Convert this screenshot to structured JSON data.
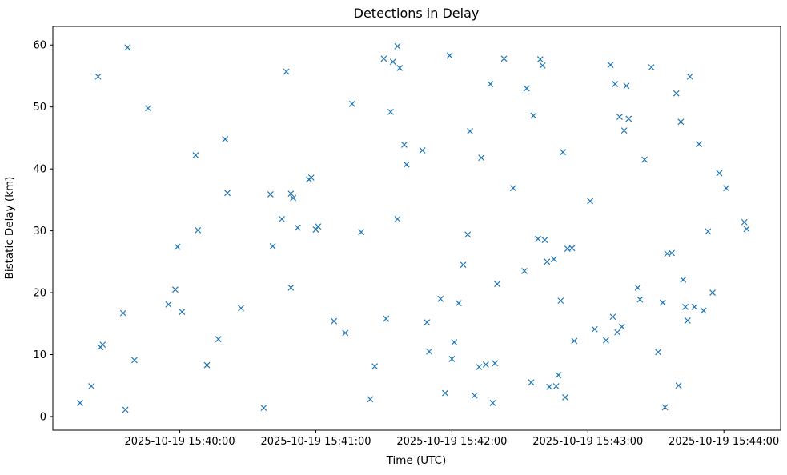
{
  "figure": {
    "title": "Detections in Delay",
    "xlabel": "Time (UTC)",
    "ylabel": "Bistatic Delay (km)"
  },
  "chart_data": {
    "type": "scatter",
    "title": "Detections in Delay",
    "xlabel": "Time (UTC)",
    "ylabel": "Bistatic Delay (km)",
    "marker": "x",
    "marker_color": "#1f77b4",
    "grid": false,
    "legend": "none",
    "x_unit": "seconds relative to 2025-10-19 15:40:00 UTC",
    "xlim": [
      -56,
      265
    ],
    "ylim": [
      -2.2,
      63
    ],
    "x_ticks": [
      {
        "value": 0,
        "label": "2025-10-19 15:40:00"
      },
      {
        "value": 60,
        "label": "2025-10-19 15:41:00"
      },
      {
        "value": 120,
        "label": "2025-10-19 15:42:00"
      },
      {
        "value": 180,
        "label": "2025-10-19 15:43:00"
      },
      {
        "value": 240,
        "label": "2025-10-19 15:44:00"
      }
    ],
    "y_ticks": [
      0,
      10,
      20,
      30,
      40,
      50,
      60
    ],
    "points": [
      [
        -44,
        2.2
      ],
      [
        -39,
        4.9
      ],
      [
        -36,
        54.9
      ],
      [
        -35,
        11.2
      ],
      [
        -34,
        11.6
      ],
      [
        -25,
        16.7
      ],
      [
        -24,
        1.1
      ],
      [
        -23,
        59.6
      ],
      [
        -20,
        9.1
      ],
      [
        -14,
        49.8
      ],
      [
        -5,
        18.1
      ],
      [
        -2,
        20.5
      ],
      [
        -1,
        27.4
      ],
      [
        1,
        16.9
      ],
      [
        7,
        42.2
      ],
      [
        8,
        30.1
      ],
      [
        12,
        8.3
      ],
      [
        17,
        12.5
      ],
      [
        20,
        44.8
      ],
      [
        21,
        36.1
      ],
      [
        27,
        17.5
      ],
      [
        37,
        1.4
      ],
      [
        40,
        35.9
      ],
      [
        41,
        27.5
      ],
      [
        45,
        31.9
      ],
      [
        47,
        55.7
      ],
      [
        49,
        20.8
      ],
      [
        49,
        36.0
      ],
      [
        50,
        35.3
      ],
      [
        52,
        30.5
      ],
      [
        57,
        38.3
      ],
      [
        58,
        38.6
      ],
      [
        60,
        30.2
      ],
      [
        61,
        30.7
      ],
      [
        68,
        15.4
      ],
      [
        73,
        13.5
      ],
      [
        76,
        50.5
      ],
      [
        80,
        29.8
      ],
      [
        84,
        2.8
      ],
      [
        86,
        8.1
      ],
      [
        90,
        57.8
      ],
      [
        91,
        15.8
      ],
      [
        93,
        49.2
      ],
      [
        94,
        57.3
      ],
      [
        96,
        59.8
      ],
      [
        96,
        31.9
      ],
      [
        97,
        56.3
      ],
      [
        99,
        43.9
      ],
      [
        100,
        40.7
      ],
      [
        107,
        43.0
      ],
      [
        109,
        15.2
      ],
      [
        110,
        10.5
      ],
      [
        115,
        19.0
      ],
      [
        117,
        3.8
      ],
      [
        119,
        58.3
      ],
      [
        120,
        9.3
      ],
      [
        121,
        12.0
      ],
      [
        123,
        18.3
      ],
      [
        125,
        24.5
      ],
      [
        127,
        29.4
      ],
      [
        128,
        46.1
      ],
      [
        130,
        3.4
      ],
      [
        132,
        8.0
      ],
      [
        133,
        41.8
      ],
      [
        135,
        8.4
      ],
      [
        137,
        53.7
      ],
      [
        138,
        2.2
      ],
      [
        139,
        8.6
      ],
      [
        140,
        21.4
      ],
      [
        143,
        57.8
      ],
      [
        147,
        36.9
      ],
      [
        152,
        23.5
      ],
      [
        153,
        53.0
      ],
      [
        155,
        5.5
      ],
      [
        156,
        48.6
      ],
      [
        158,
        28.7
      ],
      [
        159,
        57.7
      ],
      [
        160,
        56.7
      ],
      [
        161,
        28.5
      ],
      [
        162,
        25.0
      ],
      [
        163,
        4.8
      ],
      [
        165,
        25.4
      ],
      [
        166,
        4.9
      ],
      [
        167,
        6.7
      ],
      [
        168,
        18.7
      ],
      [
        169,
        42.7
      ],
      [
        170,
        3.1
      ],
      [
        171,
        27.1
      ],
      [
        173,
        27.2
      ],
      [
        174,
        12.2
      ],
      [
        181,
        34.8
      ],
      [
        183,
        14.1
      ],
      [
        188,
        12.3
      ],
      [
        190,
        56.8
      ],
      [
        191,
        16.1
      ],
      [
        192,
        53.7
      ],
      [
        193,
        13.6
      ],
      [
        194,
        48.4
      ],
      [
        195,
        14.5
      ],
      [
        196,
        46.2
      ],
      [
        197,
        53.4
      ],
      [
        198,
        48.1
      ],
      [
        202,
        20.8
      ],
      [
        203,
        18.9
      ],
      [
        205,
        41.5
      ],
      [
        208,
        56.4
      ],
      [
        211,
        10.4
      ],
      [
        213,
        18.4
      ],
      [
        214,
        1.5
      ],
      [
        215,
        26.3
      ],
      [
        217,
        26.4
      ],
      [
        219,
        52.2
      ],
      [
        220,
        5.0
      ],
      [
        221,
        47.6
      ],
      [
        222,
        22.1
      ],
      [
        223,
        17.7
      ],
      [
        224,
        15.5
      ],
      [
        225,
        54.9
      ],
      [
        227,
        17.7
      ],
      [
        229,
        44.0
      ],
      [
        231,
        17.1
      ],
      [
        233,
        29.9
      ],
      [
        235,
        20.0
      ],
      [
        238,
        39.3
      ],
      [
        241,
        36.9
      ],
      [
        249,
        31.4
      ],
      [
        250,
        30.3
      ]
    ]
  }
}
